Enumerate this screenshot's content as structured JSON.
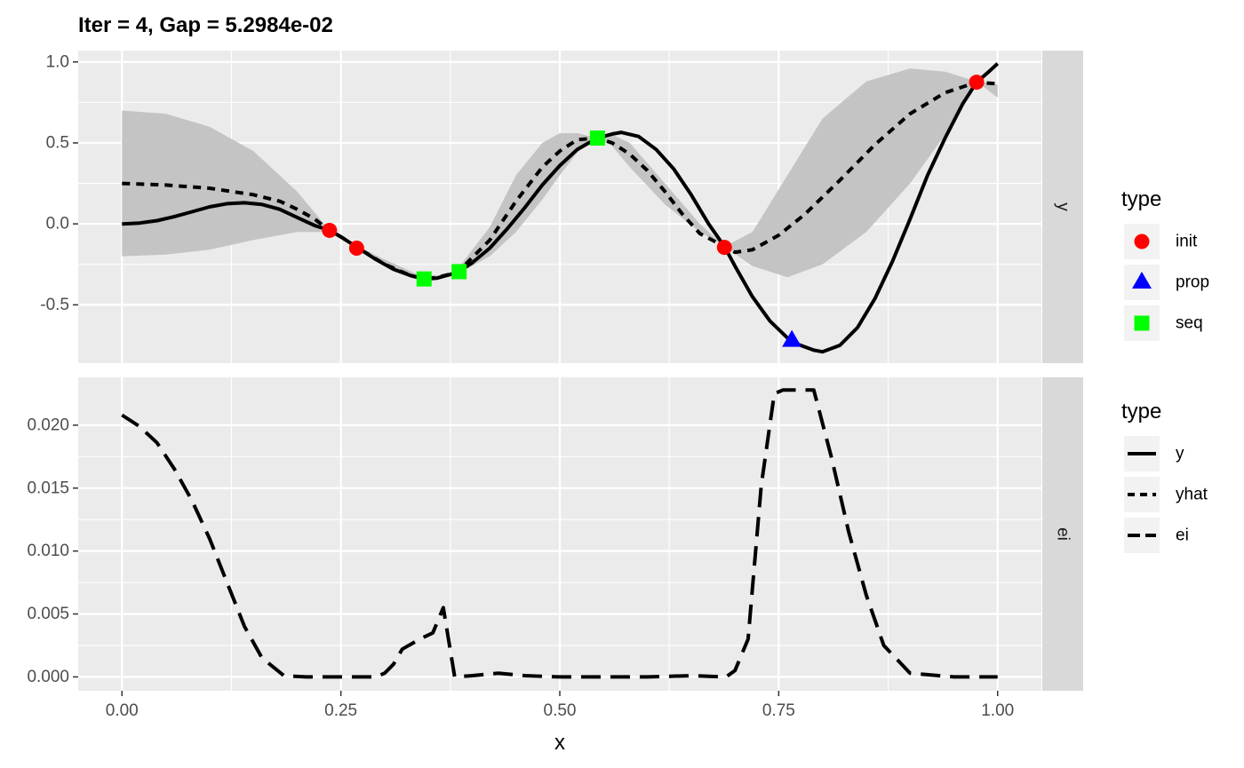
{
  "chart_data": {
    "type": "line",
    "title": "Iter = 4, Gap = 5.2984e-02",
    "xlabel": "x",
    "xlim": [
      -0.05,
      1.05
    ],
    "x_ticks": [
      0,
      0.25,
      0.5,
      0.75,
      1
    ],
    "x_tick_labels": [
      "0.00",
      "0.25",
      "0.50",
      "0.75",
      "1.00"
    ],
    "grid": true,
    "panels": [
      {
        "strip": "y",
        "ylim": [
          -0.86,
          1.07
        ],
        "y_ticks": [
          -0.5,
          0,
          0.5,
          1
        ],
        "y_tick_labels": [
          "-0.5",
          "0.0",
          "0.5",
          "1.0"
        ],
        "band": {
          "x": [
            0,
            0.05,
            0.1,
            0.15,
            0.2,
            0.237,
            0.27,
            0.3,
            0.345,
            0.37,
            0.383,
            0.42,
            0.45,
            0.48,
            0.5,
            0.52,
            0.543,
            0.56,
            0.58,
            0.62,
            0.66,
            0.688,
            0.72,
            0.76,
            0.8,
            0.85,
            0.9,
            0.94,
            0.976,
            1.0
          ],
          "lower": [
            -0.2,
            -0.19,
            -0.16,
            -0.1,
            -0.05,
            -0.05,
            -0.16,
            -0.26,
            -0.35,
            -0.33,
            -0.31,
            -0.2,
            -0.05,
            0.15,
            0.3,
            0.44,
            0.53,
            0.48,
            0.35,
            0.12,
            -0.05,
            -0.14,
            -0.26,
            -0.33,
            -0.25,
            -0.05,
            0.25,
            0.55,
            0.88,
            0.78
          ],
          "upper": [
            0.7,
            0.68,
            0.6,
            0.45,
            0.2,
            -0.04,
            -0.14,
            -0.22,
            -0.33,
            -0.31,
            -0.28,
            -0.02,
            0.3,
            0.5,
            0.56,
            0.56,
            0.53,
            0.55,
            0.5,
            0.25,
            0.0,
            -0.14,
            -0.05,
            0.3,
            0.65,
            0.88,
            0.96,
            0.94,
            0.88,
            0.86
          ]
        },
        "series": [
          {
            "name": "y",
            "x": [
              0,
              0.02,
              0.04,
              0.06,
              0.08,
              0.1,
              0.12,
              0.14,
              0.16,
              0.18,
              0.2,
              0.22,
              0.237,
              0.25,
              0.27,
              0.29,
              0.31,
              0.33,
              0.345,
              0.36,
              0.37,
              0.383,
              0.4,
              0.42,
              0.44,
              0.46,
              0.48,
              0.5,
              0.52,
              0.543,
              0.56,
              0.57,
              0.59,
              0.61,
              0.63,
              0.65,
              0.67,
              0.688,
              0.7,
              0.72,
              0.74,
              0.765,
              0.78,
              0.79,
              0.8,
              0.82,
              0.84,
              0.86,
              0.88,
              0.9,
              0.92,
              0.94,
              0.96,
              0.976,
              0.99,
              1.0
            ],
            "values": [
              0.0,
              0.005,
              0.02,
              0.045,
              0.075,
              0.105,
              0.125,
              0.13,
              0.12,
              0.09,
              0.04,
              -0.01,
              -0.04,
              -0.08,
              -0.15,
              -0.22,
              -0.28,
              -0.32,
              -0.34,
              -0.335,
              -0.32,
              -0.3,
              -0.24,
              -0.15,
              -0.03,
              0.1,
              0.24,
              0.36,
              0.46,
              0.53,
              0.555,
              0.565,
              0.54,
              0.46,
              0.34,
              0.18,
              0.0,
              -0.14,
              -0.26,
              -0.45,
              -0.6,
              -0.73,
              -0.76,
              -0.78,
              -0.79,
              -0.75,
              -0.64,
              -0.46,
              -0.23,
              0.03,
              0.3,
              0.53,
              0.74,
              0.875,
              0.94,
              0.99
            ]
          },
          {
            "name": "yhat",
            "x": [
              0,
              0.05,
              0.1,
              0.15,
              0.18,
              0.2,
              0.22,
              0.237,
              0.25,
              0.27,
              0.3,
              0.33,
              0.345,
              0.36,
              0.383,
              0.42,
              0.45,
              0.48,
              0.5,
              0.52,
              0.543,
              0.56,
              0.58,
              0.6,
              0.62,
              0.64,
              0.66,
              0.688,
              0.7,
              0.72,
              0.75,
              0.78,
              0.82,
              0.86,
              0.9,
              0.94,
              0.976,
              1.0
            ],
            "values": [
              0.25,
              0.24,
              0.22,
              0.18,
              0.14,
              0.09,
              0.03,
              -0.04,
              -0.08,
              -0.15,
              -0.25,
              -0.32,
              -0.34,
              -0.33,
              -0.3,
              -0.1,
              0.14,
              0.35,
              0.45,
              0.52,
              0.53,
              0.5,
              0.43,
              0.33,
              0.2,
              0.06,
              -0.06,
              -0.14,
              -0.175,
              -0.16,
              -0.07,
              0.06,
              0.27,
              0.49,
              0.68,
              0.81,
              0.875,
              0.865
            ]
          }
        ],
        "points": [
          {
            "type": "init",
            "x": 0.237,
            "y": -0.04
          },
          {
            "type": "init",
            "x": 0.268,
            "y": -0.15
          },
          {
            "type": "init",
            "x": 0.688,
            "y": -0.145
          },
          {
            "type": "init",
            "x": 0.976,
            "y": 0.875
          },
          {
            "type": "seq",
            "x": 0.345,
            "y": -0.34
          },
          {
            "type": "seq",
            "x": 0.385,
            "y": -0.295
          },
          {
            "type": "seq",
            "x": 0.543,
            "y": 0.53
          },
          {
            "type": "prop",
            "x": 0.765,
            "y": -0.72
          }
        ]
      },
      {
        "strip": "ei",
        "ylim": [
          -0.0011,
          0.0238
        ],
        "y_ticks": [
          0,
          0.005,
          0.01,
          0.015,
          0.02
        ],
        "y_tick_labels": [
          "0.000",
          "0.005",
          "0.010",
          "0.015",
          "0.020"
        ],
        "series": [
          {
            "name": "ei",
            "x": [
              0,
              0.02,
              0.04,
              0.06,
              0.08,
              0.1,
              0.12,
              0.14,
              0.16,
              0.185,
              0.21,
              0.25,
              0.29,
              0.3,
              0.31,
              0.32,
              0.34,
              0.355,
              0.367,
              0.38,
              0.4,
              0.43,
              0.46,
              0.5,
              0.55,
              0.6,
              0.65,
              0.69,
              0.7,
              0.715,
              0.73,
              0.745,
              0.755,
              0.76,
              0.775,
              0.79,
              0.81,
              0.83,
              0.85,
              0.87,
              0.9,
              0.95,
              1.0
            ],
            "values": [
              0.0208,
              0.0199,
              0.0186,
              0.0165,
              0.014,
              0.011,
              0.0075,
              0.004,
              0.0015,
              0.0001,
              0,
              0,
              0,
              0.0003,
              0.001,
              0.0022,
              0.003,
              0.0035,
              0.0055,
              0.0,
              0.0001,
              0.0003,
              0.0001,
              0,
              0,
              0,
              0.0001,
              0,
              0.0005,
              0.003,
              0.0152,
              0.0225,
              0.0228,
              0.0228,
              0.0228,
              0.0228,
              0.0175,
              0.0115,
              0.0065,
              0.0025,
              0.0003,
              0,
              0
            ]
          }
        ]
      }
    ],
    "legends": [
      {
        "title": "type",
        "entries": [
          {
            "label": "init",
            "shape": "circle",
            "color": "#ff0000"
          },
          {
            "label": "prop",
            "shape": "triangle",
            "color": "#0000ff"
          },
          {
            "label": "seq",
            "shape": "square",
            "color": "#00ff00"
          }
        ]
      },
      {
        "title": "type",
        "entries": [
          {
            "label": "y",
            "linetype": "solid"
          },
          {
            "label": "yhat",
            "linetype": "dotted"
          },
          {
            "label": "ei",
            "linetype": "dashed"
          }
        ]
      }
    ],
    "colors": {
      "panel_background": "#ebebeb",
      "strip_background": "#d9d9d9",
      "grid": "#ffffff",
      "band": "#c4c4c4",
      "line": "#000000",
      "init": "#ff0000",
      "prop": "#0000ff",
      "seq": "#00ff00",
      "legend_key": "#f2f2f2"
    }
  }
}
